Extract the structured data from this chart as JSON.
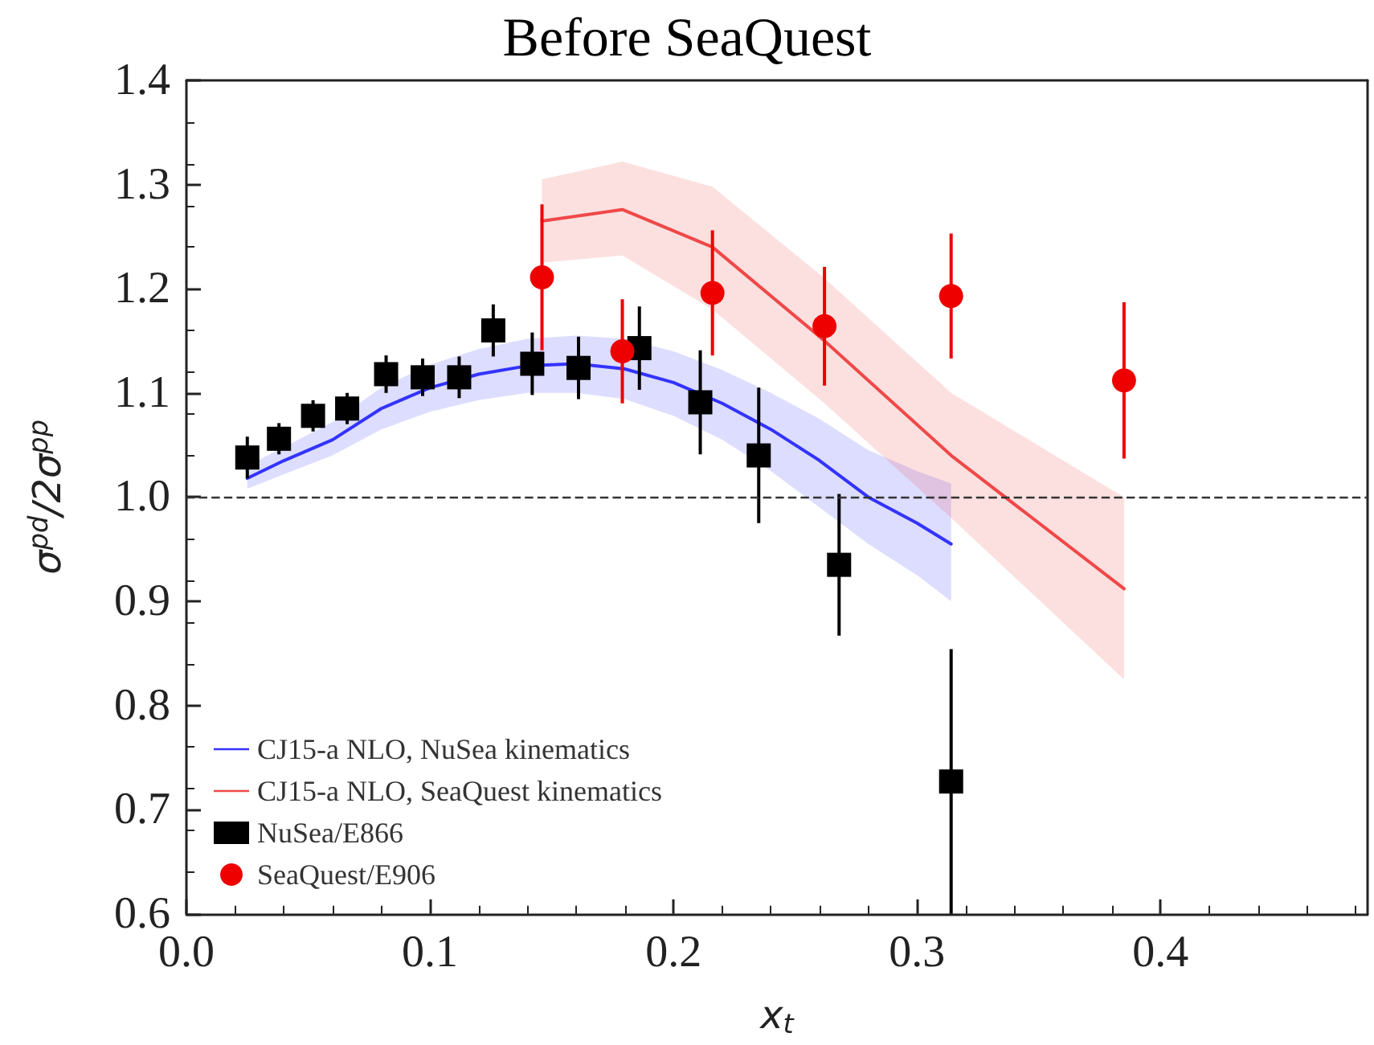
{
  "chart_data": {
    "type": "scatter",
    "title": "Before SeaQuest",
    "xlabel": "x$_{t}$",
    "ylabel": "σ$^{pd}$/2σ$^{pp}$",
    "xlim": [
      0,
      0.485
    ],
    "ylim": [
      0.6,
      1.4
    ],
    "xticks": [
      {
        "value": 0,
        "label": "0.0"
      },
      {
        "value": 0.1,
        "label": "0.1"
      },
      {
        "value": 0.2,
        "label": "0.2"
      },
      {
        "value": 0.3,
        "label": "0.3"
      },
      {
        "value": 0.4,
        "label": "0.4"
      }
    ],
    "yticks": [
      {
        "value": 0.6,
        "label": "0.6"
      },
      {
        "value": 0.7,
        "label": "0.7"
      },
      {
        "value": 0.8,
        "label": "0.8"
      },
      {
        "value": 0.9,
        "label": "0.9"
      },
      {
        "value": 1.0,
        "label": "1.0"
      },
      {
        "value": 1.1,
        "label": "1.1"
      },
      {
        "value": 1.2,
        "label": "1.2"
      },
      {
        "value": 1.3,
        "label": "1.3"
      },
      {
        "value": 1.4,
        "label": "1.4"
      }
    ],
    "grid": false,
    "legend": "bottom left",
    "ref_lines": [
      {
        "axis": "y",
        "value": 1.0,
        "color": "#333333",
        "line_style": "dashed"
      }
    ],
    "series": [
      {
        "name": "CJ15-a NLO, NuSea kinematics",
        "type": "line",
        "color": "#3333ff",
        "x": [
          0.025,
          0.04,
          0.06,
          0.08,
          0.1,
          0.12,
          0.14,
          0.16,
          0.18,
          0.2,
          0.22,
          0.24,
          0.26,
          0.28,
          0.3,
          0.314
        ],
        "values": [
          1.018,
          1.035,
          1.055,
          1.085,
          1.105,
          1.118,
          1.126,
          1.128,
          1.123,
          1.11,
          1.09,
          1.065,
          1.035,
          1.0,
          0.975,
          0.955
        ],
        "lower": [
          1.008,
          1.022,
          1.04,
          1.065,
          1.082,
          1.093,
          1.1,
          1.1,
          1.094,
          1.078,
          1.055,
          1.025,
          0.99,
          0.955,
          0.925,
          0.9
        ],
        "upper": [
          1.03,
          1.048,
          1.072,
          1.105,
          1.127,
          1.142,
          1.152,
          1.155,
          1.152,
          1.14,
          1.122,
          1.1,
          1.075,
          1.045,
          1.025,
          1.013
        ]
      },
      {
        "name": "CJ15-a NLO, SeaQuest kinematics",
        "type": "line",
        "color": "#f04848",
        "x": [
          0.146,
          0.179,
          0.216,
          0.262,
          0.314,
          0.385
        ],
        "values": [
          1.265,
          1.276,
          1.24,
          1.15,
          1.04,
          0.912
        ],
        "lower": [
          1.225,
          1.232,
          1.18,
          1.09,
          0.98,
          0.825
        ],
        "upper": [
          1.305,
          1.322,
          1.298,
          1.21,
          1.1,
          1.0
        ]
      },
      {
        "name": "NuSea/E866",
        "marker": "square",
        "color": "#000000",
        "x": [
          0.025,
          0.038,
          0.052,
          0.066,
          0.082,
          0.097,
          0.112,
          0.126,
          0.142,
          0.161,
          0.186,
          0.211,
          0.235,
          0.268,
          0.314
        ],
        "values": [
          1.038,
          1.056,
          1.078,
          1.085,
          1.118,
          1.115,
          1.115,
          1.16,
          1.128,
          1.124,
          1.143,
          1.091,
          1.04,
          0.935,
          0.727
        ],
        "errors": [
          0.02,
          0.015,
          0.015,
          0.015,
          0.018,
          0.018,
          0.02,
          0.025,
          0.03,
          0.03,
          0.04,
          0.05,
          0.065,
          0.068,
          0.127
        ]
      },
      {
        "name": "SeaQuest/E906",
        "marker": "circle",
        "color": "#ee0000",
        "x": [
          0.146,
          0.179,
          0.216,
          0.262,
          0.314,
          0.385
        ],
        "values": [
          1.211,
          1.14,
          1.196,
          1.164,
          1.193,
          1.112
        ],
        "errors": [
          0.07,
          0.05,
          0.06,
          0.057,
          0.06,
          0.075
        ]
      }
    ]
  }
}
